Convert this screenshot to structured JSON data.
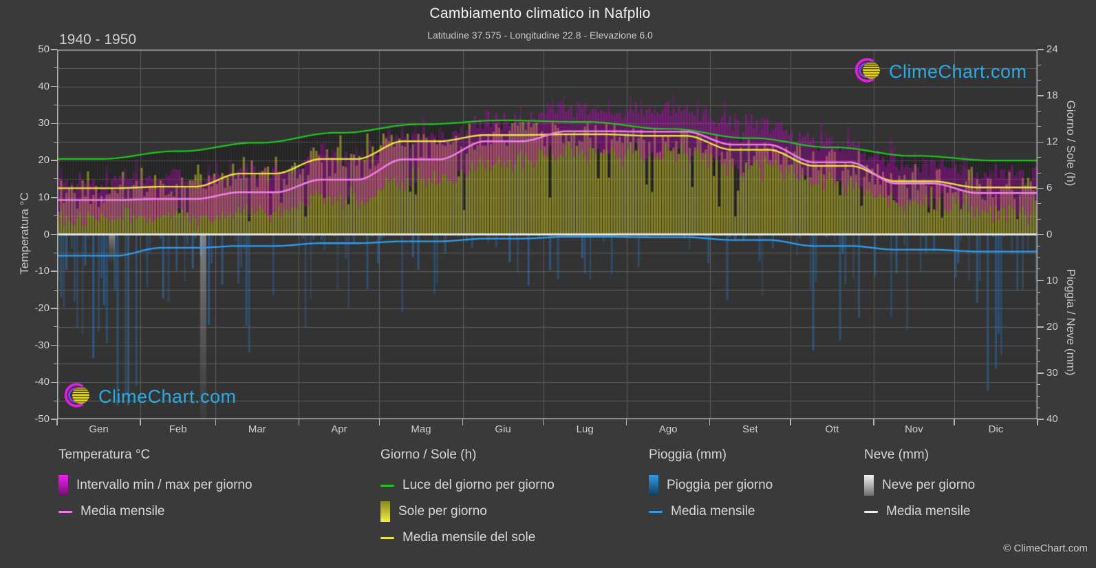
{
  "header": {
    "title": "Cambiamento climatico in Nafplio",
    "subtitle": "Latitudine 37.575 - Longitudine 22.8 - Elevazione 6.0",
    "period": "1940 - 1950"
  },
  "axes": {
    "left": {
      "title": "Temperatura °C",
      "range": [
        -50,
        50
      ],
      "major_ticks": [
        50,
        40,
        30,
        20,
        10,
        0,
        -10,
        -20,
        -30,
        -40,
        -50
      ],
      "minor_step": 5
    },
    "right_top": {
      "title": "Giorno / Sole (h)",
      "range": [
        0,
        24
      ],
      "major_ticks": [
        24,
        18,
        12,
        6,
        0
      ],
      "minor_step": 2
    },
    "right_bottom": {
      "title": "Pioggia / Neve (mm)",
      "range": [
        0,
        40
      ],
      "major_ticks": [
        10,
        20,
        30,
        40
      ],
      "minor_step": 2.5
    },
    "bottom": {
      "month_labels": [
        "Gen",
        "Feb",
        "Mar",
        "Apr",
        "Mag",
        "Giu",
        "Lug",
        "Ago",
        "Set",
        "Ott",
        "Nov",
        "Dic"
      ]
    }
  },
  "watermark": {
    "text": "ClimeChart.com"
  },
  "footer": {
    "copyright": "© ClimeChart.com"
  },
  "palette": {
    "page_bg": "#3a3a3a",
    "plot_bg": "#333333",
    "grid": "#5e5e5e",
    "spine": "#b4b4b4",
    "zero_line": "#e2e2e2",
    "daylight_line": "#1fc71f",
    "sun_line": "#eae63c",
    "temp_line": "#f27ce8",
    "rain_line": "#2f9df0",
    "snow_line": "#eeeeee",
    "temp_bar": "rgba(210,0,210,0.42)",
    "sun_bar": "rgba(225,219,45,0.50)",
    "daylight_bar": "rgba(0,0,0,0.28)",
    "rain_bar": "rgba(45,115,185,0.55)",
    "snow_bar": "rgba(225,225,225,0.45)",
    "watermark_text": "#29abe2"
  },
  "legend": {
    "sections": [
      {
        "heading": "Temperatura °C",
        "items": [
          {
            "swatch": "gradient",
            "from": "#f41ef4",
            "to": "#6e106e",
            "label": "Intervallo min / max per giorno"
          },
          {
            "swatch": "line",
            "color": "#f27ce8",
            "label": "Media mensile"
          }
        ]
      },
      {
        "heading": "Giorno / Sole (h)",
        "items": [
          {
            "swatch": "line",
            "color": "#1fc71f",
            "label": "Luce del giorno per giorno"
          },
          {
            "swatch": "gradient",
            "from": "#89891f",
            "to": "#f2ee3e",
            "label": "Sole per giorno"
          },
          {
            "swatch": "line",
            "color": "#eae63c",
            "label": "Media mensile del sole"
          }
        ]
      },
      {
        "heading": "Pioggia (mm)",
        "items": [
          {
            "swatch": "gradient",
            "from": "#2e9be6",
            "to": "#133c5e",
            "label": "Pioggia per giorno"
          },
          {
            "swatch": "line",
            "color": "#2f9df0",
            "label": "Media mensile"
          }
        ]
      },
      {
        "heading": "Neve (mm)",
        "items": [
          {
            "swatch": "gradient",
            "from": "#f2f2f2",
            "to": "#6f6f6f",
            "label": "Neve per giorno"
          },
          {
            "swatch": "line",
            "color": "#eeeeee",
            "label": "Media mensile"
          }
        ]
      }
    ]
  },
  "chart_data": {
    "type": "climate-composite",
    "months": [
      "Gen",
      "Feb",
      "Mar",
      "Apr",
      "Mag",
      "Giu",
      "Lug",
      "Ago",
      "Set",
      "Ott",
      "Nov",
      "Dic"
    ],
    "series": {
      "daylight_hours_mean": [
        9.8,
        10.8,
        11.9,
        13.2,
        14.3,
        14.8,
        14.6,
        13.7,
        12.5,
        11.3,
        10.2,
        9.6
      ],
      "sunshine_hours_monthly_mean": [
        6.0,
        6.2,
        7.9,
        9.8,
        12.1,
        12.9,
        13.0,
        12.8,
        11.0,
        8.9,
        6.9,
        6.1
      ],
      "temp_monthly_mean_c": [
        9.3,
        9.6,
        11.4,
        14.8,
        20.3,
        25.2,
        27.9,
        27.8,
        24.3,
        19.5,
        13.8,
        11.2
      ],
      "temp_daily_min_avg_c": [
        4.5,
        4.7,
        6.2,
        9.2,
        14.2,
        19.2,
        22.2,
        22.2,
        18.6,
        14.2,
        9.8,
        6.8
      ],
      "temp_daily_max_avg_c": [
        14.3,
        14.8,
        16.6,
        20.4,
        26.2,
        31.0,
        33.4,
        33.2,
        30.0,
        24.8,
        19.6,
        16.2
      ],
      "rain_monthly_mean_mm_per_day": [
        4.6,
        2.9,
        2.5,
        1.9,
        1.5,
        0.9,
        0.5,
        0.6,
        1.2,
        2.5,
        3.3,
        3.7
      ],
      "snow_monthly_mean_mm_per_day": [
        0,
        0,
        0,
        0,
        0,
        0,
        0,
        0,
        0,
        0,
        0,
        0
      ]
    },
    "snow_events_daily": [
      {
        "day_of_year": 54,
        "mm": 44
      },
      {
        "day_of_year": 20,
        "mm": 6
      }
    ],
    "axis_mapping": {
      "temperature_c": [
        -50,
        50
      ],
      "day_sun_hours_on_upper_half": [
        0,
        24
      ],
      "rain_snow_mm_on_lower_half_inverted": [
        0,
        40
      ]
    },
    "daily_bars_note": "Daily min/max temperature, daylight, sunshine and rain bars are stochastic scatter around the monthly means listed above; rain spikes reach up to ~37 mm.",
    "grid": "horizontal every 5 °C, vertical at month boundaries",
    "legend_position": "bottom"
  }
}
